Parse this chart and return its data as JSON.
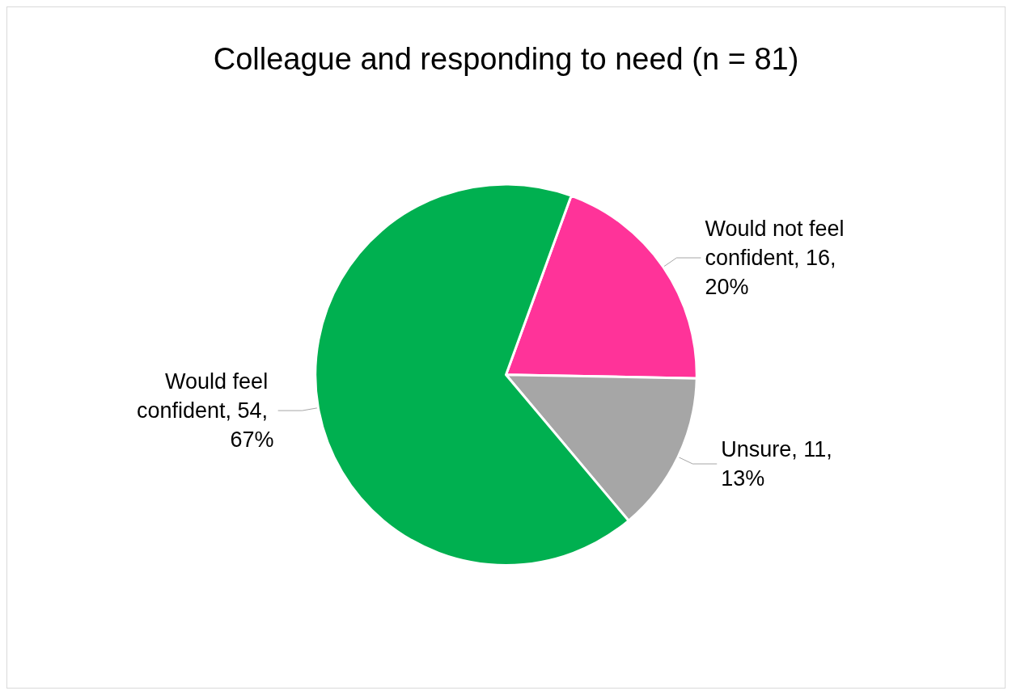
{
  "chart_data": {
    "type": "pie",
    "title": "Colleague and responding to need (n = 81)",
    "categories": [
      "Would not feel confident",
      "Unsure",
      "Would feel confident"
    ],
    "values": [
      16,
      11,
      54
    ],
    "colors": [
      "#ff3399",
      "#a6a6a6",
      "#00b050"
    ],
    "value_labels": [
      "16, 20%",
      "11, 13%",
      "54, 67%"
    ],
    "legend": false
  }
}
